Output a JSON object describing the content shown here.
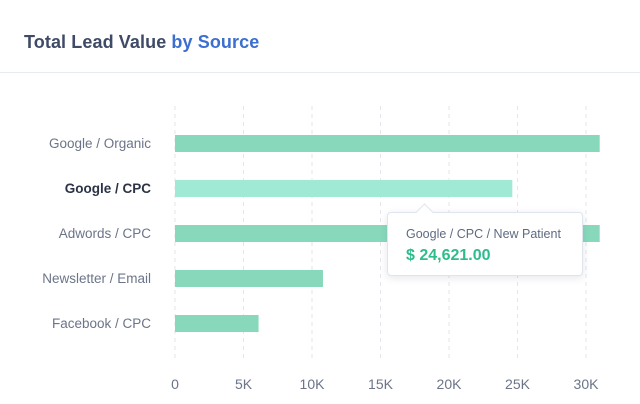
{
  "header": {
    "title_main": "Total Lead Value",
    "title_accent": "by Source"
  },
  "colors": {
    "bar": "#88d9bb",
    "bar_highlight": "#9fe9d5",
    "label": "#6b7488",
    "label_highlight": "#2c3346",
    "grid": "#e3e6ec",
    "accent": "#3c6fd0",
    "tooltip_value": "#2ebd8a"
  },
  "tooltip": {
    "label": "Google / CPC / New Patient",
    "value": "$ 24,621.00"
  },
  "chart_data": {
    "type": "bar",
    "orientation": "horizontal",
    "categories": [
      "Google / Organic",
      "Google / CPC",
      "Adwords / CPC",
      "Newsletter / Email",
      "Facebook / CPC"
    ],
    "values": [
      31000,
      24621,
      31000,
      10800,
      6100
    ],
    "highlighted_index": 1,
    "xlim": [
      0,
      35000
    ],
    "xticks": [
      0,
      5000,
      10000,
      15000,
      20000,
      25000,
      30000
    ],
    "xtick_labels": [
      "0",
      "5K",
      "10K",
      "15K",
      "20K",
      "25K",
      "30K"
    ],
    "grid": "vertical dashed"
  }
}
